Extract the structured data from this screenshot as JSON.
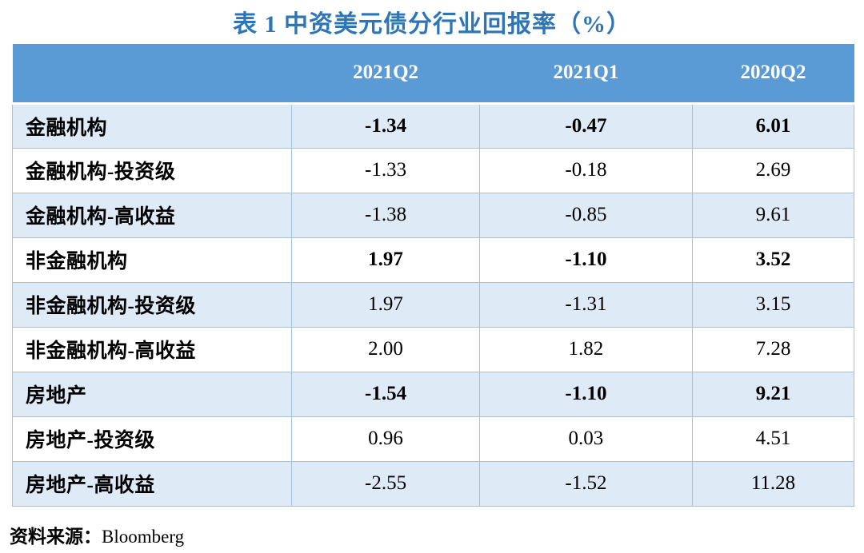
{
  "title": "表 1 中资美元债分行业回报率（%）",
  "table": {
    "columns": [
      "",
      "2021Q2",
      "2021Q1",
      "2020Q2"
    ],
    "rows": [
      {
        "label": "金融机构",
        "values": [
          "-1.34",
          "-0.47",
          "6.01"
        ],
        "bold": true,
        "band": true
      },
      {
        "label": "金融机构-投资级",
        "values": [
          "-1.33",
          "-0.18",
          "2.69"
        ],
        "bold": false,
        "band": false
      },
      {
        "label": "金融机构-高收益",
        "values": [
          "-1.38",
          "-0.85",
          "9.61"
        ],
        "bold": false,
        "band": true
      },
      {
        "label": "非金融机构",
        "values": [
          "1.97",
          "-1.10",
          "3.52"
        ],
        "bold": true,
        "band": false
      },
      {
        "label": "非金融机构-投资级",
        "values": [
          "1.97",
          "-1.31",
          "3.15"
        ],
        "bold": false,
        "band": true
      },
      {
        "label": "非金融机构-高收益",
        "values": [
          "2.00",
          "1.82",
          "7.28"
        ],
        "bold": false,
        "band": false
      },
      {
        "label": "房地产",
        "values": [
          "-1.54",
          "-1.10",
          "9.21"
        ],
        "bold": true,
        "band": true
      },
      {
        "label": "房地产-投资级",
        "values": [
          "0.96",
          "0.03",
          "4.51"
        ],
        "bold": false,
        "band": false
      },
      {
        "label": "房地产-高收益",
        "values": [
          "-2.55",
          "-1.52",
          "11.28"
        ],
        "bold": false,
        "band": true
      }
    ]
  },
  "source": {
    "label": "资料来源：",
    "value": "Bloomberg"
  },
  "colors": {
    "header_bg": "#5B9BD5",
    "band_bg": "#DEEBF7",
    "border": "#9CC2E5",
    "title": "#2E75B6",
    "header_text": "#FFFFFF"
  },
  "chart_data": {
    "type": "table",
    "title": "表 1 中资美元债分行业回报率（%）",
    "unit": "%",
    "columns": [
      "2021Q2",
      "2021Q1",
      "2020Q2"
    ],
    "rows": [
      {
        "name": "金融机构",
        "values": [
          -1.34,
          -0.47,
          6.01
        ]
      },
      {
        "name": "金融机构-投资级",
        "values": [
          -1.33,
          -0.18,
          2.69
        ]
      },
      {
        "name": "金融机构-高收益",
        "values": [
          -1.38,
          -0.85,
          9.61
        ]
      },
      {
        "name": "非金融机构",
        "values": [
          1.97,
          -1.1,
          3.52
        ]
      },
      {
        "name": "非金融机构-投资级",
        "values": [
          1.97,
          -1.31,
          3.15
        ]
      },
      {
        "name": "非金融机构-高收益",
        "values": [
          2.0,
          1.82,
          7.28
        ]
      },
      {
        "name": "房地产",
        "values": [
          -1.54,
          -1.1,
          9.21
        ]
      },
      {
        "name": "房地产-投资级",
        "values": [
          0.96,
          0.03,
          4.51
        ]
      },
      {
        "name": "房地产-高收益",
        "values": [
          -2.55,
          -1.52,
          11.28
        ]
      }
    ],
    "source": "Bloomberg"
  }
}
